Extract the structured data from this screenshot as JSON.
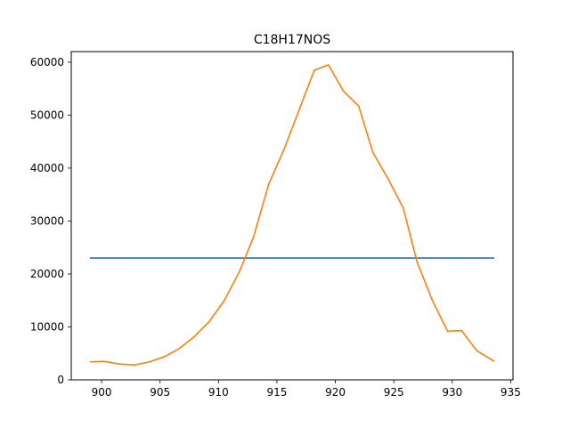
{
  "chart_data": {
    "type": "line",
    "title": "C18H17NOS",
    "xlabel": "",
    "ylabel": "",
    "xlim": [
      897.4,
      935.2
    ],
    "ylim": [
      0,
      62000
    ],
    "xticks": [
      900,
      905,
      910,
      915,
      920,
      925,
      930,
      935
    ],
    "yticks": [
      0,
      10000,
      20000,
      30000,
      40000,
      50000,
      60000
    ],
    "grid": false,
    "series": [
      {
        "color": "#1f77b4",
        "x": [
          899.0,
          933.6
        ],
        "y": [
          23000,
          23000
        ]
      },
      {
        "color": "#ff7f0e",
        "x": [
          899.0,
          900.2,
          901.5,
          902.8,
          904.1,
          905.4,
          906.7,
          907.9,
          909.2,
          910.5,
          911.8,
          913.0,
          914.3,
          915.6,
          916.9,
          918.2,
          919.4,
          920.7,
          922.0,
          923.2,
          924.5,
          925.8,
          927.0,
          928.3,
          929.6,
          930.8,
          932.1,
          933.6
        ],
        "y": [
          3400,
          3500,
          3000,
          2800,
          3400,
          4400,
          6000,
          8100,
          11000,
          15000,
          20500,
          27000,
          37000,
          43500,
          51000,
          58500,
          59500,
          54500,
          51700,
          43000,
          38000,
          32500,
          22200,
          15000,
          9200,
          9300,
          5500,
          3500
        ]
      }
    ]
  }
}
